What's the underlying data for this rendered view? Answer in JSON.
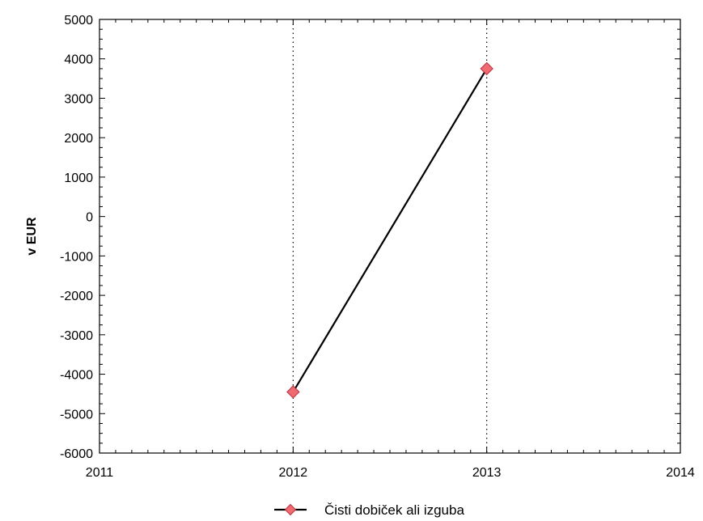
{
  "chart_data": {
    "type": "line",
    "title": "",
    "xlabel": "",
    "ylabel": "v EUR",
    "x_ticks": [
      "2011",
      "2012",
      "2013",
      "2014"
    ],
    "y_ticks": [
      "5000",
      "4000",
      "3000",
      "2000",
      "1000",
      "0",
      "-1000",
      "-2000",
      "-3000",
      "-4000",
      "-5000",
      "-6000"
    ],
    "xlim": [
      2011,
      2014
    ],
    "ylim": [
      -6000,
      5000
    ],
    "grid": "dotted vertical lines at data points",
    "legend_position": "bottom-center",
    "series": [
      {
        "name": "Čisti dobiček ali izguba",
        "x": [
          2012,
          2013
        ],
        "y": [
          -4450,
          3750
        ],
        "color": "#000000",
        "marker": "diamond",
        "marker_color": "#f06a72"
      }
    ]
  }
}
